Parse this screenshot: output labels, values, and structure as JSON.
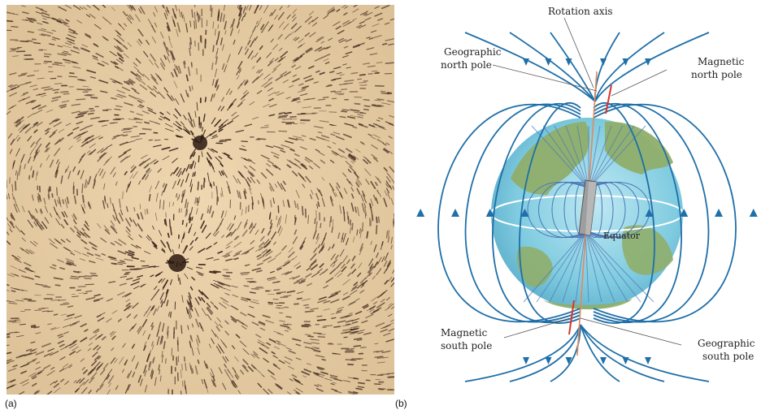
{
  "panels": {
    "a": {
      "letter": "(a)"
    },
    "b": {
      "letter": "(b)"
    }
  },
  "diagram_b": {
    "labels": {
      "rotation_axis": "Rotation axis",
      "geographic_north_line1": "Geographic",
      "geographic_north_line2": "north pole",
      "magnetic_north_line1": "Magnetic",
      "magnetic_north_line2": "north pole",
      "equator": "Equator",
      "magnetic_south_line1": "Magnetic",
      "magnetic_south_line2": "south pole",
      "geographic_south_line1": "Geographic",
      "geographic_south_line2": "south pole"
    },
    "colors": {
      "field_line": "#1f6fa8",
      "globe_ocean": "#7fcbe0",
      "globe_land": "#8fae6a",
      "rotation_axis": "#e08a5a",
      "magnetic_axis": "#d8342c",
      "equator": "#ffffff"
    }
  },
  "photo_a": {
    "colors": {
      "paper": "#e9cfa8",
      "filings": "#3a2418"
    }
  }
}
